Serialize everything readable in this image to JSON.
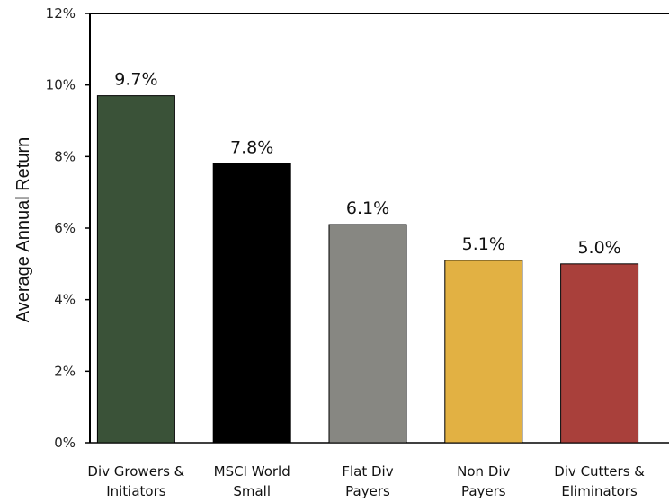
{
  "chart_data": {
    "type": "bar",
    "title": "",
    "xlabel": "",
    "ylabel": "Average Annual Return",
    "categories": [
      [
        "Div Growers &",
        "Initiators"
      ],
      [
        "MSCI World",
        "Small"
      ],
      [
        "Flat Div",
        "Payers"
      ],
      [
        "Non Div",
        "Payers"
      ],
      [
        "Div Cutters &",
        "Eliminators"
      ]
    ],
    "values": [
      9.7,
      7.8,
      6.1,
      5.1,
      5.0
    ],
    "value_labels": [
      "9.7%",
      "7.8%",
      "6.1%",
      "5.1%",
      "5.0%"
    ],
    "colors": [
      "#3a5238",
      "#000000",
      "#878782",
      "#e2b143",
      "#a9403b"
    ],
    "ylim": [
      0,
      12
    ],
    "yticks": [
      0,
      2,
      4,
      6,
      8,
      10,
      12
    ],
    "ytick_labels": [
      "0%",
      "2%",
      "4%",
      "6%",
      "8%",
      "10%",
      "12%"
    ],
    "grid": false,
    "legend": "none"
  }
}
